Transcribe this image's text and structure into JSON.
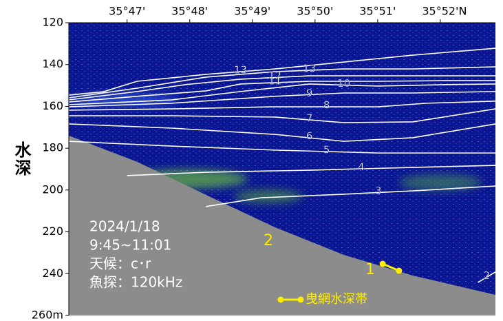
{
  "chart_data": {
    "type": "echogram",
    "y_label": "水深",
    "xlim": [
      46.07,
      52.88
    ],
    "xticks": [
      {
        "value": 47,
        "label": "35°47'"
      },
      {
        "value": 48,
        "label": "35°48'"
      },
      {
        "value": 49,
        "label": "35°49'"
      },
      {
        "value": 50,
        "label": "35°50'"
      },
      {
        "value": 51,
        "label": "35°51'"
      },
      {
        "value": 52,
        "label": "35°52'N"
      }
    ],
    "ylim": [
      120,
      260
    ],
    "y_reversed": true,
    "yticks": [
      120,
      140,
      160,
      180,
      200,
      220,
      240,
      {
        "value": 260,
        "label": "260m"
      }
    ],
    "series": [
      {
        "name": "13",
        "color": "#ffffff",
        "x": [
          46.07,
          46.62,
          47.16,
          48.26,
          49.36,
          50.46,
          51.56,
          52.88
        ],
        "values": [
          154.6,
          153.0,
          148.0,
          144.7,
          142.1,
          138.8,
          135.5,
          132.2
        ]
      },
      {
        "name": "13",
        "color": "#ffffff",
        "x": [
          46.07,
          47.16,
          48.26,
          49.36,
          50.46,
          51.56,
          52.88
        ],
        "values": [
          155.9,
          151.3,
          146.0,
          143.4,
          142.1,
          142.1,
          141.1
        ]
      },
      {
        "name": "12",
        "color": "#ffffff",
        "x": [
          46.07,
          47.16,
          47.93,
          48.81,
          49.91,
          51.01,
          52.11,
          52.88
        ],
        "values": [
          156.9,
          152.9,
          149.6,
          147.0,
          145.4,
          145.4,
          145.4,
          145.4
        ]
      },
      {
        "name": "11",
        "color": "#ffffff",
        "x": [
          46.07,
          47.16,
          48.26,
          48.81,
          49.91,
          51.01,
          52.11,
          52.88
        ],
        "values": [
          157.9,
          155.2,
          152.6,
          149.3,
          148.0,
          148.0,
          147.7,
          147.7
        ]
      },
      {
        "name": "10",
        "color": "#ffffff",
        "x": [
          46.07,
          47.71,
          48.81,
          49.91,
          51.01,
          52.11,
          52.88
        ],
        "values": [
          159.2,
          156.9,
          152.9,
          149.3,
          150.3,
          149.6,
          149.3
        ]
      },
      {
        "name": "9",
        "color": "#ffffff",
        "x": [
          46.07,
          47.71,
          49.36,
          50.46,
          51.56,
          52.88
        ],
        "values": [
          160.2,
          158.5,
          155.2,
          153.6,
          153.6,
          152.9
        ]
      },
      {
        "name": "8",
        "color": "#ffffff",
        "x": [
          46.07,
          47.71,
          49.36,
          51.01,
          51.78,
          52.88
        ],
        "values": [
          161.8,
          161.2,
          160.2,
          160.2,
          158.5,
          157.5
        ]
      },
      {
        "name": "7",
        "color": "#ffffff",
        "x": [
          46.07,
          47.71,
          49.36,
          50.46,
          51.56,
          52.88
        ],
        "values": [
          164.5,
          164.5,
          165.1,
          167.8,
          167.4,
          161.2
        ]
      },
      {
        "name": "6",
        "color": "#ffffff",
        "x": [
          46.07,
          47.71,
          49.36,
          50.46,
          51.56,
          52.88
        ],
        "values": [
          168.4,
          170.4,
          173.4,
          176.7,
          175.0,
          168.4
        ]
      },
      {
        "name": "5",
        "color": "#ffffff",
        "x": [
          46.07,
          47.71,
          49.36,
          51.01,
          52.88
        ],
        "values": [
          176.7,
          179.0,
          180.9,
          182.3,
          182.3
        ]
      },
      {
        "name": "4",
        "color": "#ffffff",
        "x": [
          47.0,
          48.26,
          49.91,
          51.56,
          52.88
        ],
        "values": [
          193.1,
          191.5,
          190.5,
          189.2,
          188.2
        ]
      },
      {
        "name": "3",
        "color": "#ffffff",
        "x": [
          48.26,
          49.14,
          50.46,
          51.56,
          52.88
        ],
        "values": [
          207.9,
          203.7,
          202.0,
          200.4,
          198.1
        ]
      },
      {
        "name": "2",
        "color": "#ffffff",
        "x": [
          52.6,
          52.88
        ],
        "values": [
          244.2,
          239.2
        ]
      }
    ],
    "bottom": {
      "color": "#8c8c8c",
      "x": [
        46.07,
        47.16,
        48.26,
        49.36,
        50.46,
        51.56,
        52.88
      ],
      "values": [
        174.0,
        186.5,
        202.3,
        217.8,
        231.0,
        240.9,
        250.1
      ]
    },
    "trawl_band": {
      "name": "曳網水深帯",
      "color": "#ffee00",
      "x": [
        51.08,
        51.34
      ],
      "values": [
        235.3,
        238.6
      ]
    },
    "tow_labels": [
      "1",
      "2"
    ],
    "annotations": [
      "2024/1/18",
      "9:45~11:01",
      "天候：c･r",
      "魚探：120kHz"
    ]
  }
}
